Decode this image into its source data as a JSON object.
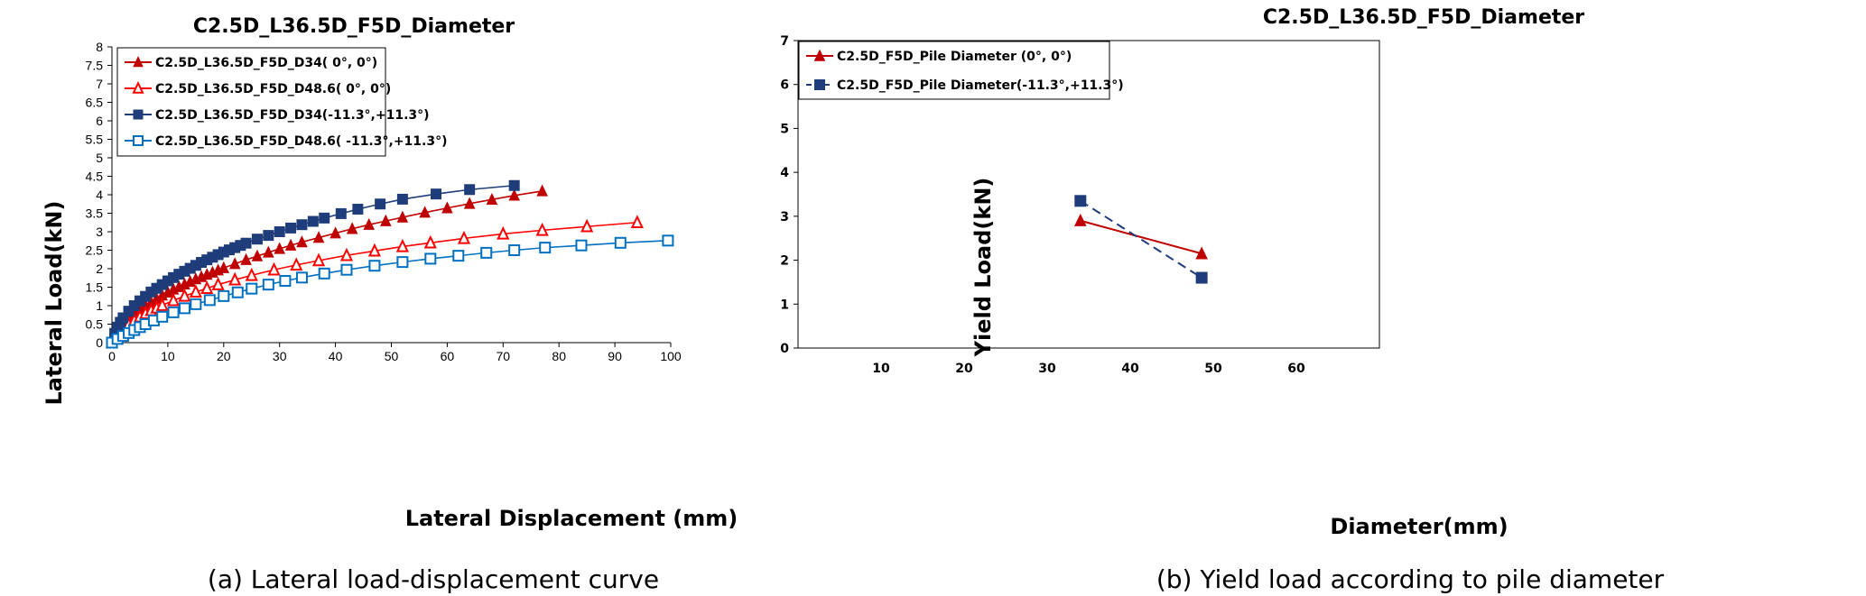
{
  "chart_data": [
    {
      "type": "line",
      "title": "C2.5D_L36.5D_F5D_Diameter",
      "xlabel": "Lateral Displacement (mm)",
      "ylabel": "Lateral Load(kN)",
      "xlim": [
        0,
        100
      ],
      "ylim": [
        0,
        8
      ],
      "xticks": [
        0,
        10,
        20,
        30,
        40,
        50,
        60,
        70,
        80,
        90,
        100
      ],
      "yticks": [
        0,
        0.5,
        1,
        1.5,
        2,
        2.5,
        3,
        3.5,
        4,
        4.5,
        5,
        5.5,
        6,
        6.5,
        7,
        7.5,
        8
      ],
      "grid": false,
      "legend_position": "top-left",
      "caption": "(a) Lateral load-displacement curve",
      "series": [
        {
          "name": "C2.5D_L36.5D_F5D_D34( 0°, 0°)",
          "color": "#c00000",
          "marker": "triangle-filled",
          "x": [
            0,
            0.5,
            1,
            2,
            3,
            4,
            5,
            6,
            7,
            8,
            9,
            10,
            11,
            12,
            13,
            14,
            15,
            16,
            17,
            18,
            19,
            20,
            22,
            24,
            26,
            28,
            30,
            32,
            34,
            37,
            40,
            43,
            46,
            49,
            52,
            56,
            60,
            64,
            68,
            72,
            77
          ],
          "y": [
            0,
            0.17,
            0.3,
            0.5,
            0.65,
            0.78,
            0.9,
            1.0,
            1.1,
            1.19,
            1.28,
            1.36,
            1.44,
            1.51,
            1.58,
            1.65,
            1.72,
            1.78,
            1.84,
            1.9,
            1.96,
            2.02,
            2.13,
            2.24,
            2.34,
            2.44,
            2.54,
            2.63,
            2.72,
            2.84,
            2.96,
            3.08,
            3.19,
            3.29,
            3.39,
            3.52,
            3.64,
            3.76,
            3.87,
            3.98,
            4.1
          ]
        },
        {
          "name": "C2.5D_L36.5D_F5D_D48.6( 0°, 0°)",
          "color": "#ff0000",
          "marker": "triangle-open",
          "x": [
            0,
            1,
            2,
            3,
            4,
            5,
            6,
            7,
            8,
            9,
            11,
            13,
            15,
            17,
            19,
            22,
            25,
            29,
            33,
            37,
            42,
            47,
            52,
            57,
            63,
            70,
            77,
            85,
            94
          ],
          "y": [
            0,
            0.22,
            0.38,
            0.5,
            0.6,
            0.7,
            0.79,
            0.87,
            0.94,
            1.01,
            1.14,
            1.26,
            1.37,
            1.47,
            1.57,
            1.7,
            1.82,
            1.97,
            2.1,
            2.22,
            2.36,
            2.48,
            2.6,
            2.7,
            2.82,
            2.94,
            3.04,
            3.14,
            3.25
          ]
        },
        {
          "name": "C2.5D_L36.5D_F5D_D34(-11.3°,+11.3°)",
          "color": "#1f3d7a",
          "marker": "square-filled",
          "x": [
            0,
            0.5,
            1,
            1.5,
            2,
            3,
            4,
            5,
            6,
            7,
            8,
            9,
            10,
            11,
            12,
            13,
            14,
            15,
            16,
            17,
            18,
            19,
            20,
            21,
            22,
            23,
            24,
            26,
            28,
            30,
            32,
            34,
            36,
            38,
            41,
            44,
            48,
            52,
            58,
            64,
            72
          ],
          "y": [
            0,
            0.25,
            0.42,
            0.55,
            0.67,
            0.85,
            1.0,
            1.13,
            1.25,
            1.37,
            1.47,
            1.57,
            1.67,
            1.76,
            1.85,
            1.93,
            2.01,
            2.09,
            2.17,
            2.24,
            2.31,
            2.38,
            2.45,
            2.51,
            2.57,
            2.63,
            2.69,
            2.8,
            2.9,
            3.0,
            3.1,
            3.19,
            3.28,
            3.37,
            3.49,
            3.61,
            3.75,
            3.88,
            4.02,
            4.14,
            4.25
          ]
        },
        {
          "name": "C2.5D_L36.5D_F5D_D48.6( -11.3°,+11.3°)",
          "color": "#0070c0",
          "marker": "square-open",
          "x": [
            0,
            1,
            2,
            3,
            4,
            5,
            6,
            7.5,
            9,
            11,
            13,
            15,
            17.5,
            20,
            22.5,
            25,
            28,
            31,
            34,
            38,
            42,
            47,
            52,
            57,
            62,
            67,
            72,
            77.5,
            84,
            91,
            99.5
          ],
          "y": [
            0,
            0.1,
            0.18,
            0.26,
            0.34,
            0.42,
            0.5,
            0.6,
            0.7,
            0.82,
            0.93,
            1.04,
            1.15,
            1.26,
            1.36,
            1.46,
            1.57,
            1.67,
            1.76,
            1.87,
            1.97,
            2.08,
            2.18,
            2.27,
            2.35,
            2.43,
            2.5,
            2.57,
            2.63,
            2.7,
            2.76
          ]
        }
      ]
    },
    {
      "type": "line",
      "title": "C2.5D_L36.5D_F5D_Diameter",
      "xlabel": "Diameter(mm)",
      "ylabel": "Yield  Load(kN)",
      "xlim": [
        0,
        70
      ],
      "ylim": [
        0,
        7
      ],
      "xticks": [
        10,
        20,
        30,
        40,
        50,
        60
      ],
      "yticks": [
        0,
        1,
        2,
        3,
        4,
        5,
        6,
        7
      ],
      "grid": false,
      "legend_position": "top-left",
      "caption": "(b) Yield load according to pile diameter",
      "series": [
        {
          "name": "C2.5D_F5D_Pile Diameter (0°, 0°)",
          "color": "#c00000",
          "marker": "triangle-filled",
          "dash": false,
          "x": [
            34,
            48.6
          ],
          "y": [
            2.9,
            2.15
          ]
        },
        {
          "name": "C2.5D_F5D_Pile Diameter(-11.3°,+11.3°)",
          "color": "#1f3d7a",
          "marker": "square-filled",
          "dash": true,
          "x": [
            34,
            48.6
          ],
          "y": [
            3.35,
            1.6
          ]
        }
      ]
    }
  ]
}
